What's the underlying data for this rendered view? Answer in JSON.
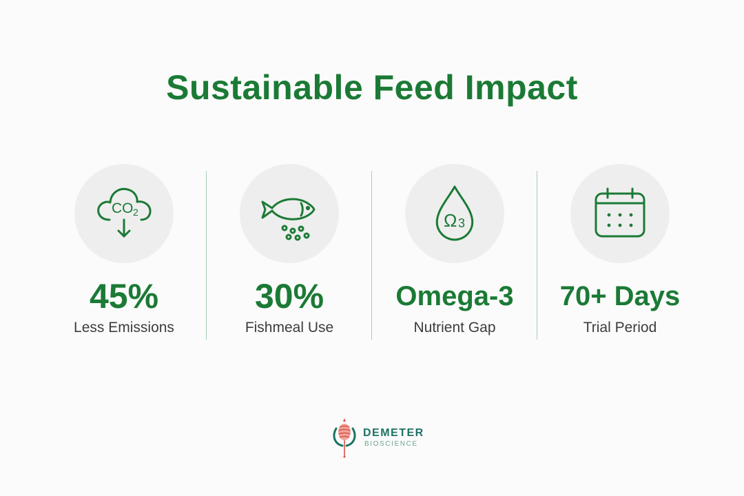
{
  "title": "Sustainable Feed Impact",
  "stats": [
    {
      "icon": "co2-cloud-icon",
      "value": "45%",
      "label": "Less Emissions"
    },
    {
      "icon": "fish-icon",
      "value": "30%",
      "label": "Fishmeal Use"
    },
    {
      "icon": "omega3-drop-icon",
      "value": "Omega-3",
      "label": "Nutrient Gap"
    },
    {
      "icon": "calendar-icon",
      "value": "70+ Days",
      "label": "Trial Period"
    }
  ],
  "icons": {
    "co2_text": "CO",
    "co2_sub": "2",
    "omega_symbol": "Ω",
    "omega_num": "3"
  },
  "logo": {
    "name": "DEMETER",
    "sub": "BIOSCIENCE"
  },
  "colors": {
    "accent": "#1b7a35",
    "background": "#fbfbfb",
    "icon_circle": "#eeeeee",
    "divider": "#a9cdb3",
    "label_text": "#3c3c3c",
    "logo_teal": "#1d7263",
    "logo_red": "#d9544a"
  }
}
